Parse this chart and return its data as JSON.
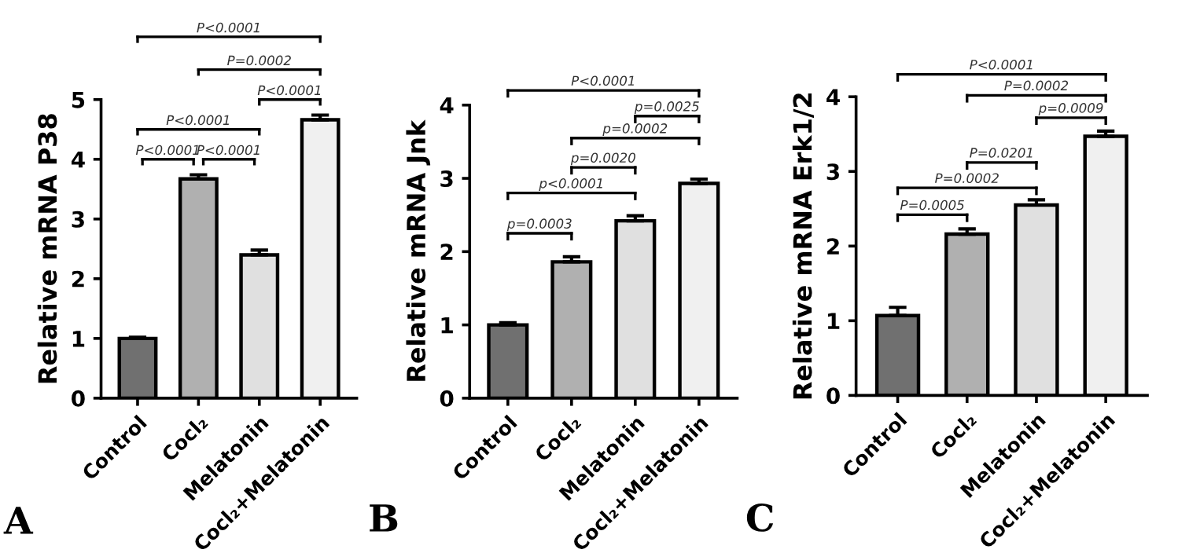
{
  "chart_data": [
    {
      "type": "bar",
      "title": "A",
      "ylabel": "Relative mRNA P38",
      "categories": [
        "Control",
        "Cocl₂",
        "Melatonin",
        "Cocl₂+Melatonin"
      ],
      "values": [
        1.0,
        3.67,
        2.4,
        4.66
      ],
      "errors": [
        0.02,
        0.07,
        0.08,
        0.08
      ],
      "colors": [
        "#707070",
        "#b0b0b0",
        "#e0e0e0",
        "#f0f0f0"
      ],
      "ylim": [
        0,
        5
      ],
      "yticks": [
        0,
        1,
        2,
        3,
        4,
        5
      ],
      "annotations": [
        "P<0.0001",
        "P=0.0002",
        "P<0.0001",
        "P<0.0001",
        "P<0.0001",
        "P<0.0001"
      ]
    },
    {
      "type": "bar",
      "title": "B",
      "ylabel": "Relative mRNA Jnk",
      "categories": [
        "Control",
        "Cocl₂",
        "Melatonin",
        "Cocl₂+Melatonin"
      ],
      "values": [
        1.0,
        1.86,
        2.42,
        2.93
      ],
      "errors": [
        0.03,
        0.07,
        0.07,
        0.06
      ],
      "colors": [
        "#707070",
        "#b0b0b0",
        "#e0e0e0",
        "#f0f0f0"
      ],
      "ylim": [
        0,
        4
      ],
      "yticks": [
        0,
        1,
        2,
        3,
        4
      ],
      "annotations": [
        "P<0.0001",
        "p=0.0025",
        "p=0.0002",
        "p=0.0020",
        "p<0.0001",
        "p=0.0003"
      ]
    },
    {
      "type": "bar",
      "title": "C",
      "ylabel": "Relative mRNA Erk1/2",
      "categories": [
        "Control",
        "Cocl₂",
        "Melatonin",
        "Cocl₂+Melatonin"
      ],
      "values": [
        1.07,
        2.16,
        2.55,
        3.47
      ],
      "errors": [
        0.11,
        0.07,
        0.07,
        0.07
      ],
      "colors": [
        "#707070",
        "#b0b0b0",
        "#e0e0e0",
        "#f0f0f0"
      ],
      "ylim": [
        0,
        4
      ],
      "yticks": [
        0,
        1,
        2,
        3,
        4
      ],
      "annotations": [
        "P<0.0001",
        "P=0.0002",
        "p=0.0009",
        "P=0.0201",
        "P=0.0002",
        "P=0.0005"
      ]
    }
  ]
}
